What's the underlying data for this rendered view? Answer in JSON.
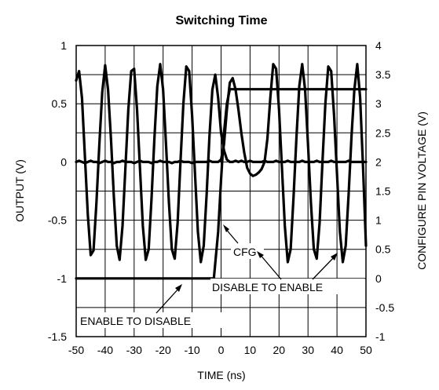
{
  "chart_data": {
    "type": "line",
    "title": "Switching Time",
    "xlabel": "TIME (ns)",
    "ylabel": "OUTPUT (V)",
    "y2label": "CONFIGURE PIN VOLTAGE (V)",
    "xlim": [
      -50,
      50
    ],
    "ylim": [
      -1.5,
      1
    ],
    "y2lim": [
      -1,
      4
    ],
    "xticks": [
      -50,
      -40,
      -30,
      -20,
      -10,
      0,
      10,
      20,
      30,
      40,
      50
    ],
    "yticks": [
      -1.5,
      -1,
      -0.5,
      0,
      0.5,
      1
    ],
    "y2ticks": [
      -1,
      -0.5,
      0,
      0.5,
      1,
      1.5,
      2,
      2.5,
      3,
      3.5,
      4
    ],
    "grid": true,
    "series": [
      {
        "axis": "left",
        "x": [
          -50,
          -49,
          -48,
          -47,
          -46,
          -45,
          -44,
          -43,
          -42,
          -41,
          -40,
          -39,
          -38,
          -37,
          -36,
          -35,
          -34,
          -33,
          -32,
          -31,
          -30,
          -29,
          -28,
          -27,
          -26,
          -25,
          -24,
          -23,
          -22,
          -21,
          -20,
          -19,
          -18,
          -17,
          -16,
          -15,
          -14,
          -13,
          -12,
          -11,
          -10,
          -9,
          -8,
          -7,
          -6,
          -5,
          -4,
          -3,
          -2,
          -1,
          0,
          1,
          2,
          3,
          4,
          5,
          6,
          7,
          8,
          9,
          10,
          11,
          12,
          13,
          14,
          15,
          16,
          17,
          18,
          19,
          20,
          21,
          22,
          23,
          24,
          25,
          26,
          27,
          28,
          29,
          30,
          31,
          32,
          33,
          34,
          35,
          36,
          37,
          38,
          39,
          40,
          41,
          42,
          43,
          44,
          45,
          46,
          47,
          48,
          49,
          50
        ],
        "values": [
          0.7,
          0.78,
          0.55,
          0.05,
          -0.45,
          -0.8,
          -0.76,
          -0.35,
          0.15,
          0.6,
          0.83,
          0.62,
          0.2,
          -0.3,
          -0.72,
          -0.84,
          -0.55,
          -0.05,
          0.45,
          0.78,
          0.8,
          0.45,
          -0.05,
          -0.55,
          -0.84,
          -0.75,
          -0.32,
          0.2,
          0.65,
          0.84,
          0.62,
          0.15,
          -0.35,
          -0.75,
          -0.83,
          -0.52,
          0.0,
          0.5,
          0.82,
          0.78,
          0.4,
          -0.1,
          -0.6,
          -0.86,
          -0.72,
          -0.28,
          0.22,
          0.62,
          0.75,
          0.55,
          0.25,
          0.1,
          0.02,
          0.0,
          0.0,
          0.01,
          0.0,
          0.01,
          0.0,
          0.0,
          0.01,
          0.0,
          0.0,
          0.0,
          0.0,
          0.01,
          0.0,
          0.0,
          0.0,
          0.01,
          0.0,
          0.0,
          0.0,
          0.01,
          0.0,
          0.0,
          0.0,
          0.0,
          0.01,
          0.0,
          0.0,
          0.0,
          0.0,
          0.01,
          0.0,
          0.0,
          0.0,
          0.0,
          0.01,
          0.0,
          0.0,
          0.0,
          0.0,
          0.0,
          0.01,
          0.0,
          0.0,
          0.0,
          0.0,
          0.0,
          0.0
        ]
      },
      {
        "axis": "left",
        "x": [
          -50,
          -49,
          -48,
          -47,
          -46,
          -45,
          -44,
          -43,
          -42,
          -41,
          -40,
          -39,
          -38,
          -37,
          -36,
          -35,
          -34,
          -33,
          -32,
          -31,
          -30,
          -29,
          -28,
          -27,
          -26,
          -25,
          -24,
          -23,
          -22,
          -21,
          -20,
          -19,
          -18,
          -17,
          -16,
          -15,
          -14,
          -13,
          -12,
          -11,
          -10,
          -9,
          -8,
          -7,
          -6,
          -5,
          -4,
          -3,
          -2,
          -1,
          0,
          1,
          2,
          3,
          4,
          5,
          6,
          7,
          8,
          9,
          10,
          11,
          12,
          13,
          14,
          15,
          16,
          17,
          18,
          19,
          20,
          21,
          22,
          23,
          24,
          25,
          26,
          27,
          28,
          29,
          30,
          31,
          32,
          33,
          34,
          35,
          36,
          37,
          38,
          39,
          40,
          41,
          42,
          43,
          44,
          45,
          46,
          47,
          48,
          49,
          50
        ],
        "values": [
          0.0,
          0.01,
          0.0,
          -0.01,
          0.0,
          0.01,
          0.0,
          0.0,
          -0.01,
          0.0,
          0.01,
          0.0,
          0.0,
          -0.01,
          0.0,
          0.0,
          0.01,
          0.0,
          0.0,
          0.0,
          -0.01,
          0.0,
          0.01,
          0.0,
          0.0,
          0.0,
          -0.01,
          0.0,
          0.0,
          0.01,
          0.0,
          0.0,
          0.0,
          -0.01,
          0.0,
          0.0,
          0.01,
          0.0,
          0.0,
          0.0,
          -0.01,
          0.0,
          0.0,
          0.0,
          0.0,
          0.0,
          0.01,
          0.0,
          0.0,
          0.0,
          0.02,
          0.15,
          0.45,
          0.68,
          0.72,
          0.62,
          0.45,
          0.25,
          0.08,
          -0.05,
          -0.1,
          -0.12,
          -0.11,
          -0.09,
          -0.06,
          0.0,
          0.2,
          0.55,
          0.84,
          0.8,
          0.45,
          -0.05,
          -0.55,
          -0.86,
          -0.75,
          -0.3,
          0.2,
          0.65,
          0.84,
          0.62,
          0.15,
          -0.35,
          -0.75,
          -0.83,
          -0.52,
          0.0,
          0.5,
          0.82,
          0.78,
          0.4,
          -0.1,
          -0.6,
          -0.86,
          -0.72,
          -0.28,
          0.22,
          0.62,
          0.84,
          0.55,
          -0.05,
          -0.72
        ]
      },
      {
        "name": "CFG",
        "axis": "right",
        "x": [
          -50,
          -2.5,
          -1,
          0,
          1,
          2,
          3,
          4,
          50
        ],
        "values": [
          0,
          0,
          0.8,
          1.7,
          2.5,
          3.0,
          3.25,
          3.25,
          3.25
        ]
      }
    ],
    "annotations": [
      {
        "text": "CFG"
      },
      {
        "text": "DISABLE TO ENABLE"
      },
      {
        "text": "ENABLE TO DISABLE"
      }
    ]
  }
}
